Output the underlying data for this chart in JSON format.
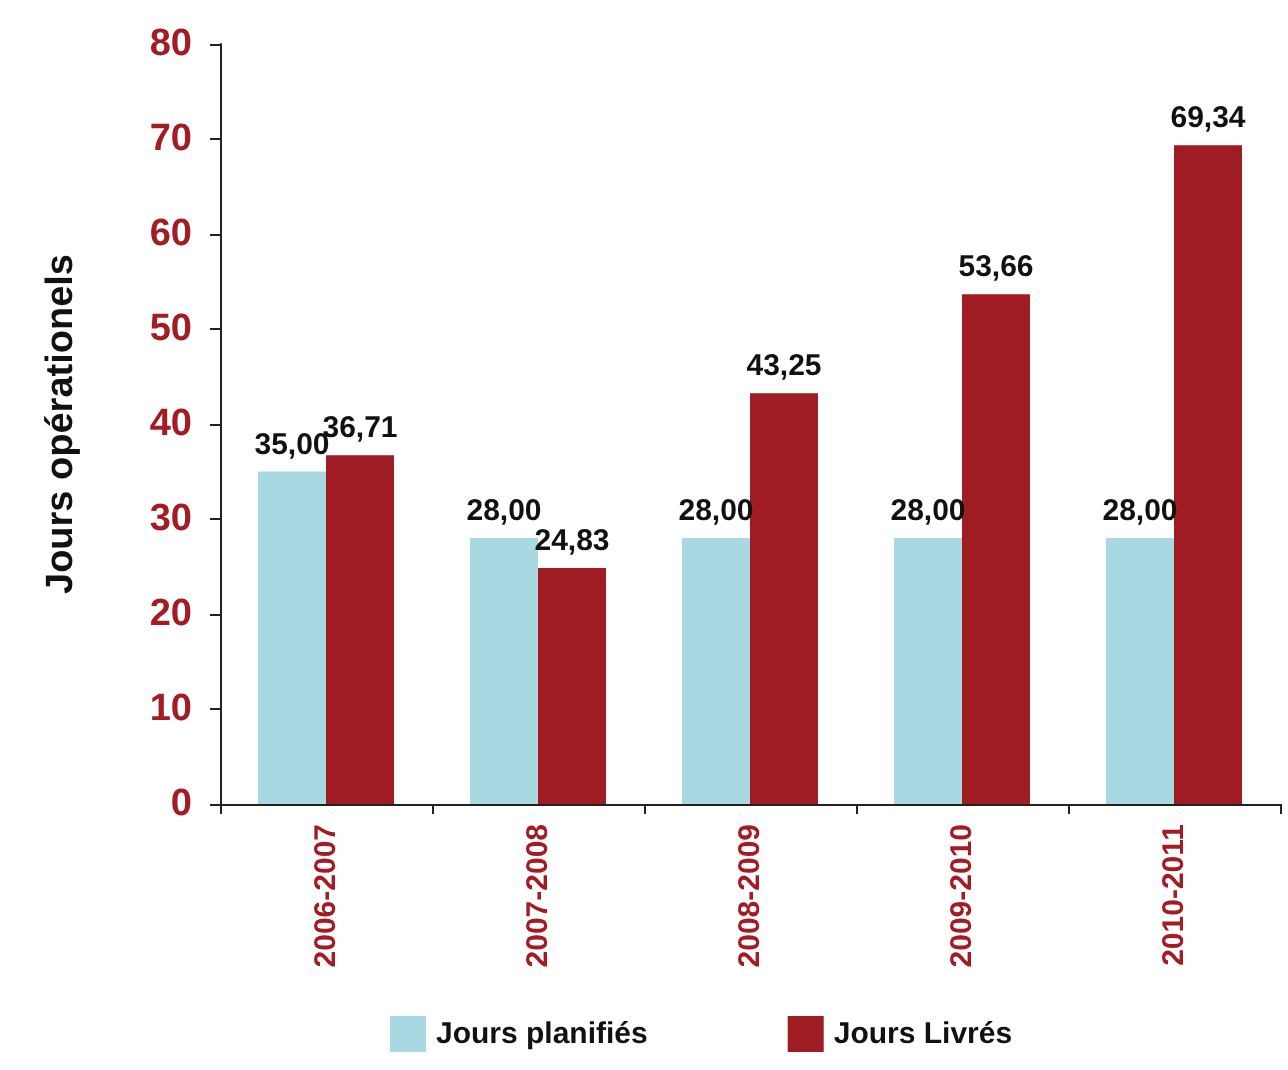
{
  "chart_data": {
    "type": "bar",
    "ylabel": "Jours opérationels",
    "categories": [
      "2006-2007",
      "2007-2008",
      "2008-2009",
      "2009-2010",
      "2010-2011"
    ],
    "series": [
      {
        "name": "Jours planifiés",
        "color": "#a8d8e2",
        "values": [
          35,
          28,
          28,
          28,
          28
        ],
        "value_labels": [
          "35,00",
          "28,00",
          "28,00",
          "28,00",
          "28,00"
        ]
      },
      {
        "name": "Jours Livrés",
        "color": "#9e1c22",
        "values": [
          36.71,
          24.83,
          43.25,
          53.66,
          69.34
        ],
        "value_labels": [
          "36,71",
          "24,83",
          "43,25",
          "53,66",
          "69,34"
        ]
      }
    ],
    "ylim": [
      0,
      80
    ],
    "yticks": [
      0,
      10,
      20,
      30,
      40,
      50,
      60,
      70,
      80
    ],
    "grid": false,
    "legend": "bottom"
  }
}
